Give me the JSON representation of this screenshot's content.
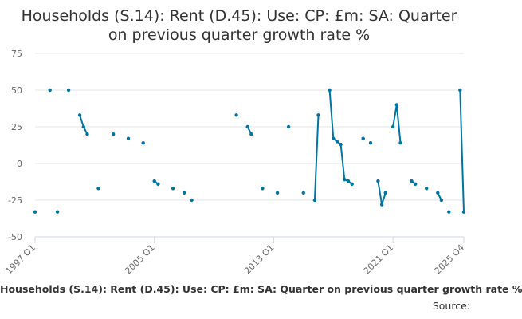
{
  "title_line1": "Households (S.14): Rent (D.45): Use: CP: £m: SA: Quarter",
  "title_line2": "on previous quarter growth rate %",
  "legend_label": "Households (S.14): Rent (D.45): Use: CP: £m: SA: Quarter on previous quarter growth rate %",
  "source_label": "Source:",
  "colors": {
    "series": "#0075a3",
    "grid": "#e6e6e6",
    "axis": "#ccd6eb",
    "tick_text": "#666666"
  },
  "chart_data": {
    "type": "line",
    "title": "Households (S.14): Rent (D.45): Use: CP: £m: SA: Quarter on previous quarter growth rate %",
    "ylim": [
      -50,
      75
    ],
    "yticks": [
      -50,
      -25,
      0,
      25,
      50,
      75
    ],
    "xlim": [
      "1997 Q1",
      "2025 Q4"
    ],
    "xtick_labels": [
      "1997 Q1",
      "2005 Q1",
      "2013 Q1",
      "2021 Q1",
      "2025 Q4"
    ],
    "grid": true,
    "legend_position": "bottom",
    "series": [
      {
        "name": "Households (S.14): Rent (D.45): Use: CP: £m: SA: Quarter on previous quarter growth rate %",
        "points": [
          [
            "1997 Q1",
            -33
          ],
          [
            "1998 Q1",
            50
          ],
          [
            "1998 Q3",
            -33
          ],
          [
            "1999 Q2",
            50
          ],
          [
            "2000 Q1",
            33
          ],
          [
            "2000 Q2",
            25
          ],
          [
            "2000 Q3",
            20
          ],
          [
            "2001 Q2",
            -17
          ],
          [
            "2002 Q2",
            20
          ],
          [
            "2003 Q2",
            17
          ],
          [
            "2004 Q2",
            14
          ],
          [
            "2005 Q1",
            -12
          ],
          [
            "2005 Q2",
            -14
          ],
          [
            "2006 Q2",
            -17
          ],
          [
            "2007 Q1",
            -20
          ],
          [
            "2007 Q3",
            -25
          ],
          [
            "2010 Q3",
            33
          ],
          [
            "2011 Q2",
            25
          ],
          [
            "2011 Q3",
            20
          ],
          [
            "2012 Q2",
            -17
          ],
          [
            "2013 Q2",
            -20
          ],
          [
            "2014 Q1",
            25
          ],
          [
            "2015 Q1",
            -20
          ],
          [
            "2015 Q4",
            -25
          ],
          [
            "2016 Q1",
            33
          ],
          [
            "2016 Q4",
            50
          ],
          [
            "2017 Q1",
            17
          ],
          [
            "2017 Q2",
            15
          ],
          [
            "2017 Q3",
            13
          ],
          [
            "2017 Q4",
            -11
          ],
          [
            "2018 Q1",
            -12
          ],
          [
            "2018 Q2",
            -14
          ],
          [
            "2019 Q1",
            17
          ],
          [
            "2019 Q3",
            14
          ],
          [
            "2020 Q1",
            -12
          ],
          [
            "2020 Q2",
            -28
          ],
          [
            "2020 Q3",
            -20
          ],
          [
            "2021 Q1",
            25
          ],
          [
            "2021 Q2",
            40
          ],
          [
            "2021 Q3",
            14
          ],
          [
            "2022 Q2",
            -12
          ],
          [
            "2022 Q3",
            -14
          ],
          [
            "2023 Q2",
            -17
          ],
          [
            "2024 Q1",
            -20
          ],
          [
            "2024 Q2",
            -25
          ],
          [
            "2024 Q4",
            -33
          ],
          [
            "2025 Q3",
            50
          ],
          [
            "2025 Q4",
            -33
          ]
        ],
        "segments": [
          [
            [
              "2000 Q1",
              33
            ],
            [
              "2000 Q2",
              25
            ],
            [
              "2000 Q3",
              20
            ]
          ],
          [
            [
              "2005 Q1",
              -12
            ],
            [
              "2005 Q2",
              -14
            ]
          ],
          [
            [
              "2011 Q2",
              25
            ],
            [
              "2011 Q3",
              20
            ]
          ],
          [
            [
              "2015 Q4",
              -25
            ],
            [
              "2016 Q1",
              33
            ]
          ],
          [
            [
              "2016 Q4",
              50
            ],
            [
              "2017 Q1",
              17
            ],
            [
              "2017 Q2",
              15
            ],
            [
              "2017 Q3",
              13
            ],
            [
              "2017 Q4",
              -11
            ],
            [
              "2018 Q1",
              -12
            ],
            [
              "2018 Q2",
              -14
            ]
          ],
          [
            [
              "2020 Q1",
              -12
            ],
            [
              "2020 Q2",
              -28
            ],
            [
              "2020 Q3",
              -20
            ]
          ],
          [
            [
              "2021 Q1",
              25
            ],
            [
              "2021 Q2",
              40
            ],
            [
              "2021 Q3",
              14
            ]
          ],
          [
            [
              "2022 Q2",
              -12
            ],
            [
              "2022 Q3",
              -14
            ]
          ],
          [
            [
              "2024 Q1",
              -20
            ],
            [
              "2024 Q2",
              -25
            ]
          ],
          [
            [
              "2025 Q3",
              50
            ],
            [
              "2025 Q4",
              -33
            ]
          ]
        ]
      }
    ]
  }
}
